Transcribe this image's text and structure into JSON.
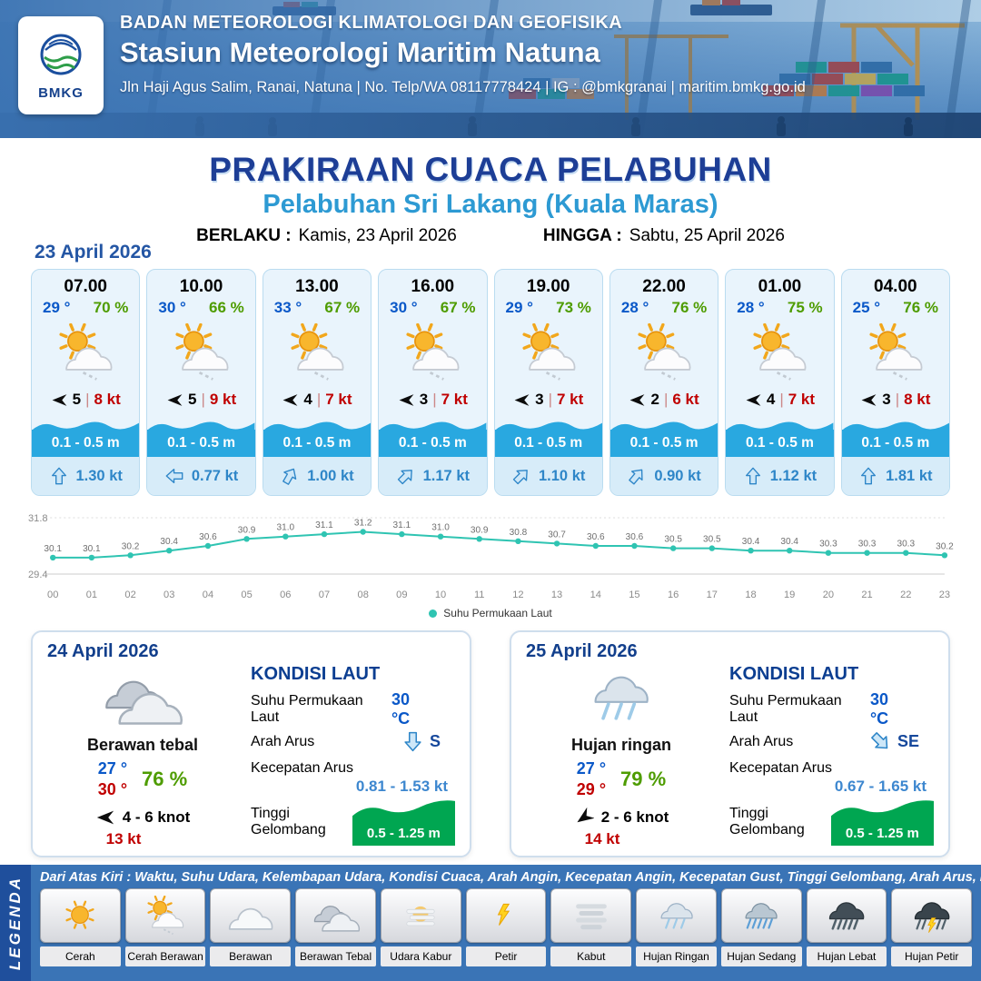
{
  "header": {
    "logo_text": "BMKG",
    "agency": "BADAN METEOROLOGI KLIMATOLOGI DAN GEOFISIKA",
    "station": "Stasiun Meteorologi Maritim Natuna",
    "contact": "Jln Haji Agus Salim, Ranai, Natuna  | No. Telp/WA 08117778424 | IG : @bmkgranai | maritim.bmkg.go.id"
  },
  "title": {
    "main": "PRAKIRAAN CUACA PELABUHAN",
    "sub": "Pelabuhan Sri Lakang (Kuala Maras)",
    "valid_label": "BERLAKU :",
    "valid_value": "Kamis, 23 April 2026",
    "until_label": "HINGGA :",
    "until_value": "Sabtu, 25 April 2026"
  },
  "hourly_date": "23 April 2026",
  "hourly": [
    {
      "time": "07.00",
      "temp": "29 °",
      "humidity": "70 %",
      "icon": "sun-cloud",
      "wind_dir_deg": 0,
      "wind": "5",
      "gust": "8 kt",
      "wave": "0.1 - 0.5 m",
      "current": "1.30 kt",
      "current_dir_deg": 0
    },
    {
      "time": "10.00",
      "temp": "30 °",
      "humidity": "66 %",
      "icon": "sun-cloud",
      "wind_dir_deg": 0,
      "wind": "5",
      "gust": "9 kt",
      "wave": "0.1 - 0.5 m",
      "current": "0.77 kt",
      "current_dir_deg": -90
    },
    {
      "time": "13.00",
      "temp": "33 °",
      "humidity": "67 %",
      "icon": "sun-cloud",
      "wind_dir_deg": 0,
      "wind": "4",
      "gust": "7 kt",
      "wave": "0.1 - 0.5 m",
      "current": "1.00 kt",
      "current_dir_deg": 30
    },
    {
      "time": "16.00",
      "temp": "30 °",
      "humidity": "67 %",
      "icon": "sun-cloud",
      "wind_dir_deg": 0,
      "wind": "3",
      "gust": "7 kt",
      "wave": "0.1 - 0.5 m",
      "current": "1.17 kt",
      "current_dir_deg": 45
    },
    {
      "time": "19.00",
      "temp": "29 °",
      "humidity": "73 %",
      "icon": "sun-cloud",
      "wind_dir_deg": 0,
      "wind": "3",
      "gust": "7 kt",
      "wave": "0.1 - 0.5 m",
      "current": "1.10 kt",
      "current_dir_deg": 45
    },
    {
      "time": "22.00",
      "temp": "28 °",
      "humidity": "76 %",
      "icon": "sun-cloud",
      "wind_dir_deg": 0,
      "wind": "2",
      "gust": "6 kt",
      "wave": "0.1 - 0.5 m",
      "current": "0.90 kt",
      "current_dir_deg": 40
    },
    {
      "time": "01.00",
      "temp": "28 °",
      "humidity": "75 %",
      "icon": "sun-cloud",
      "wind_dir_deg": 0,
      "wind": "4",
      "gust": "7 kt",
      "wave": "0.1 - 0.5 m",
      "current": "1.12 kt",
      "current_dir_deg": 0
    },
    {
      "time": "04.00",
      "temp": "25 °",
      "humidity": "76 %",
      "icon": "sun-cloud",
      "wind_dir_deg": 0,
      "wind": "3",
      "gust": "8 kt",
      "wave": "0.1 - 0.5 m",
      "current": "1.81 kt",
      "current_dir_deg": 0
    }
  ],
  "chart_data": {
    "type": "line",
    "legend": "Suhu Permukaan Laut",
    "x": [
      "00",
      "01",
      "02",
      "03",
      "04",
      "05",
      "06",
      "07",
      "08",
      "09",
      "10",
      "11",
      "12",
      "13",
      "14",
      "15",
      "16",
      "17",
      "18",
      "19",
      "20",
      "21",
      "22",
      "23"
    ],
    "values": [
      30.1,
      30.1,
      30.2,
      30.4,
      30.6,
      30.9,
      31.0,
      31.1,
      31.2,
      31.1,
      31.0,
      30.9,
      30.8,
      30.7,
      30.6,
      30.6,
      30.5,
      30.5,
      30.4,
      30.4,
      30.3,
      30.3,
      30.3,
      30.2
    ],
    "ylim": [
      29.4,
      31.8
    ],
    "grid": true,
    "legend_position": "bottom",
    "line_color": "#2fc4b2"
  },
  "daily": [
    {
      "date": "24 April 2026",
      "icon": "cloud-thick",
      "condition": "Berawan tebal",
      "temp_min": "27 °",
      "temp_max": "30 °",
      "humidity": "76 %",
      "wind_dir_deg": 0,
      "wind": "4  - 6 knot",
      "gust": "13 kt",
      "sea_title": "KONDISI LAUT",
      "sst_label": "Suhu Permukaan Laut",
      "sst": "30 °C",
      "current_dir_label": "Arah Arus",
      "current_dir": "S",
      "current_dir_deg": 180,
      "current_speed_label": "Kecepatan Arus",
      "current_speed": "0.81  - 1.53 kt",
      "wave_label": "Tinggi Gelombang",
      "wave": "0.5 - 1.25 m"
    },
    {
      "date": "25 April 2026",
      "icon": "rain-light",
      "condition": "Hujan ringan",
      "temp_min": "27 °",
      "temp_max": "29 °",
      "humidity": "79 %",
      "wind_dir_deg": -35,
      "wind": "2  - 6 knot",
      "gust": "14 kt",
      "sea_title": "KONDISI LAUT",
      "sst_label": "Suhu Permukaan Laut",
      "sst": "30 °C",
      "current_dir_label": "Arah Arus",
      "current_dir": "SE",
      "current_dir_deg": 135,
      "current_speed_label": "Kecepatan Arus",
      "current_speed": "0.67  - 1.65 kt",
      "wave_label": "Tinggi Gelombang",
      "wave": "0.5 - 1.25 m"
    }
  ],
  "legend": {
    "title": "LEGENDA",
    "note": "Dari Atas Kiri : Waktu, Suhu Udara, Kelembapan Udara, Kondisi Cuaca, Arah Angin, Kecepatan Angin, Kecepatan Gust, Tinggi Gelombang, Arah Arus, Kecepatan Arus",
    "items": [
      {
        "label": "Cerah",
        "icon": "sun"
      },
      {
        "label": "Cerah Berawan",
        "icon": "sun-cloud"
      },
      {
        "label": "Berawan",
        "icon": "cloud"
      },
      {
        "label": "Berawan Tebal",
        "icon": "cloud-thick"
      },
      {
        "label": "Udara Kabur",
        "icon": "haze"
      },
      {
        "label": "Petir",
        "icon": "lightning"
      },
      {
        "label": "Kabut",
        "icon": "fog"
      },
      {
        "label": "Hujan Ringan",
        "icon": "rain-light"
      },
      {
        "label": "Hujan Sedang",
        "icon": "rain-medium"
      },
      {
        "label": "Hujan Lebat",
        "icon": "rain-heavy"
      },
      {
        "label": "Hujan Petir",
        "icon": "rain-thunder"
      }
    ]
  },
  "colors": {
    "header_blue": "#3a72b2",
    "title_navy": "#1d3e96",
    "subtitle_blue": "#2d9ad3",
    "temp_blue": "#0a58c8",
    "humidity_green": "#4e9c00",
    "gust_red": "#c00000",
    "wave_band_blue": "#29a8e0",
    "current_blue": "#2e86c8",
    "sst_line_teal": "#2fc4b2",
    "wave_green": "#00a651",
    "legend_panel_blue": "#3a74b6"
  }
}
